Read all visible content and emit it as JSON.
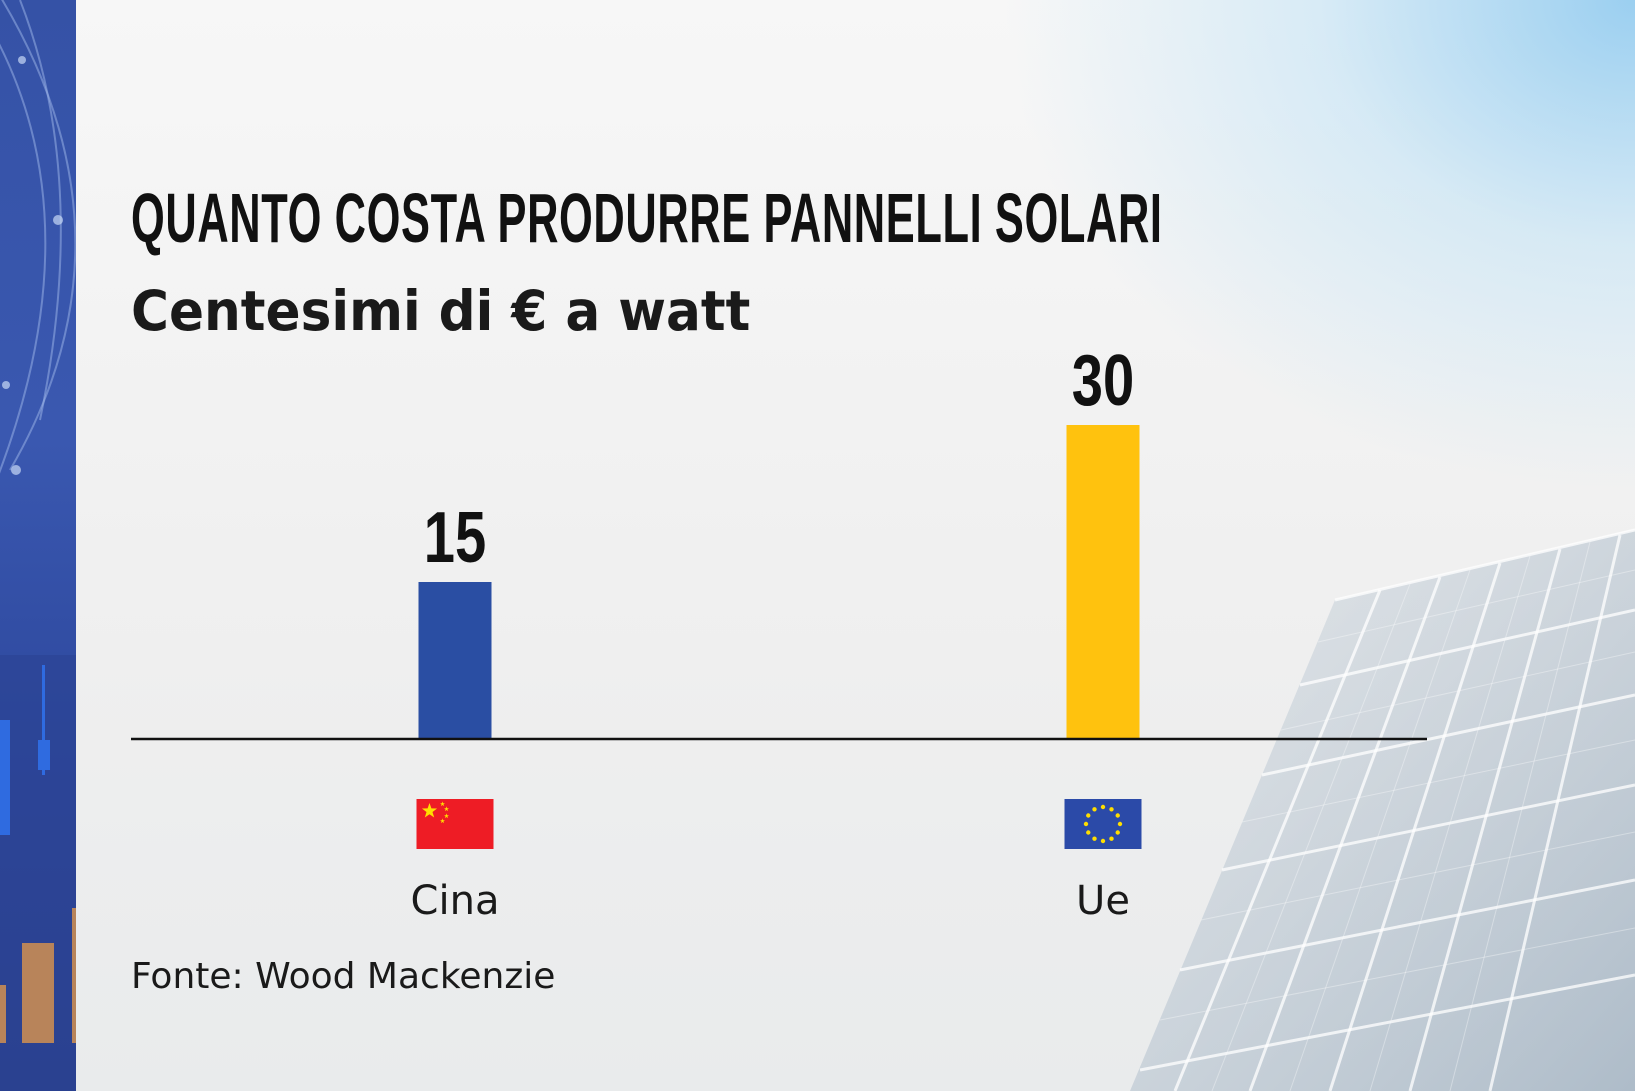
{
  "chart_data": {
    "type": "bar",
    "title": "QUANTO COSTA PRODURRE PANNELLI SOLARI",
    "subtitle": "Centesimi di € a watt",
    "source": "Fonte: Wood Mackenzie",
    "categories": [
      "Cina",
      "Ue"
    ],
    "values": [
      15,
      30
    ],
    "value_labels": [
      "15",
      "30"
    ],
    "bar_colors": [
      "#2a4ea3",
      "#ffc20e"
    ],
    "category_icons": [
      "china-flag-icon",
      "eu-flag-icon"
    ],
    "ylim": [
      0,
      30
    ],
    "grid": false,
    "legend": "none",
    "xlabel": "",
    "ylabel": ""
  },
  "colors": {
    "baseline": "#111111",
    "china_flag_red": "#ee1c25",
    "china_flag_star": "#ffde00",
    "eu_flag_blue": "#2b4aa8",
    "eu_flag_star": "#ffde00",
    "left_strip": "#3552a6"
  }
}
